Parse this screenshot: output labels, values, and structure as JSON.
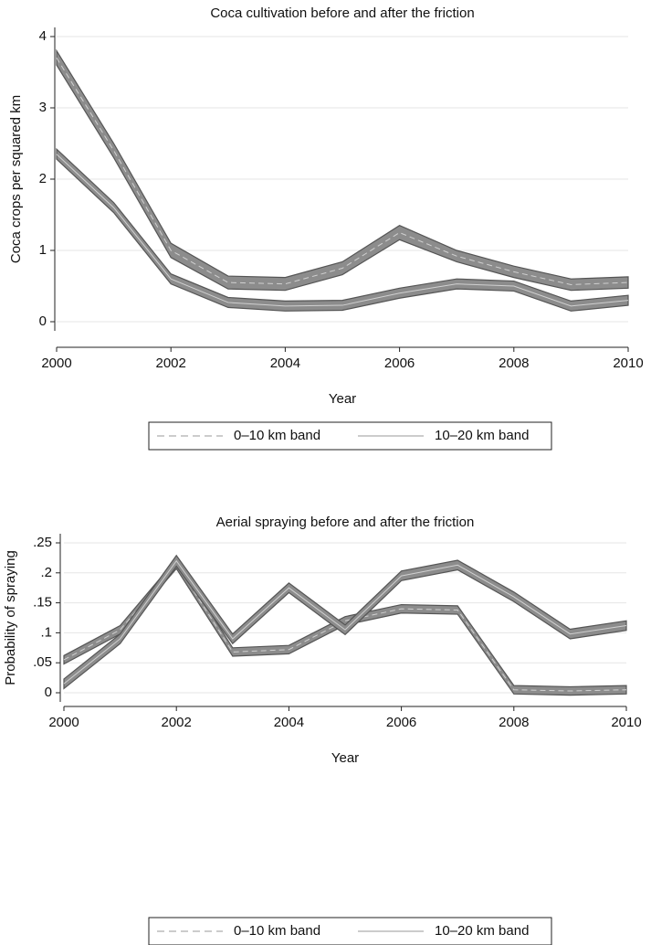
{
  "chart_data": [
    {
      "type": "line",
      "title": "Coca cultivation before and after the friction",
      "xlabel": "Year",
      "ylabel": "Coca crops per squared km",
      "x": [
        2000,
        2001,
        2002,
        2003,
        2004,
        2005,
        2006,
        2007,
        2008,
        2009,
        2010
      ],
      "xlim": [
        2000,
        2010
      ],
      "xticks": [
        2000,
        2002,
        2004,
        2006,
        2008,
        2010
      ],
      "ylim": [
        0,
        4
      ],
      "yticks": [
        0,
        1,
        2,
        3,
        4
      ],
      "grid": true,
      "legend": "bottom",
      "series": [
        {
          "name": "0–10 km band",
          "color": "#555555",
          "band_color": "#8c8c8c",
          "dashed": true,
          "values": [
            3.7,
            2.4,
            1.0,
            0.55,
            0.53,
            0.75,
            1.25,
            0.92,
            0.7,
            0.52,
            0.55
          ],
          "lower": [
            3.6,
            2.3,
            0.9,
            0.46,
            0.44,
            0.66,
            1.15,
            0.84,
            0.62,
            0.44,
            0.47
          ],
          "upper": [
            3.8,
            2.5,
            1.1,
            0.64,
            0.62,
            0.84,
            1.35,
            1.0,
            0.78,
            0.6,
            0.63
          ]
        },
        {
          "name": "10–20 km band",
          "color": "#555555",
          "band_color": "#8c8c8c",
          "dashed": false,
          "values": [
            2.35,
            1.6,
            0.6,
            0.27,
            0.22,
            0.23,
            0.4,
            0.53,
            0.5,
            0.22,
            0.3
          ],
          "lower": [
            2.28,
            1.53,
            0.53,
            0.2,
            0.15,
            0.16,
            0.33,
            0.46,
            0.43,
            0.15,
            0.23
          ],
          "upper": [
            2.42,
            1.67,
            0.67,
            0.34,
            0.29,
            0.3,
            0.47,
            0.6,
            0.57,
            0.29,
            0.37
          ]
        }
      ]
    },
    {
      "type": "line",
      "title": "Aerial spraying before and after the friction",
      "xlabel": "Year",
      "ylabel": "Probability of spraying",
      "x": [
        2000,
        2001,
        2002,
        2003,
        2004,
        2005,
        2006,
        2007,
        2008,
        2009,
        2010
      ],
      "xlim": [
        2000,
        2010
      ],
      "xticks": [
        2000,
        2002,
        2004,
        2006,
        2008,
        2010
      ],
      "ylim": [
        0,
        0.25
      ],
      "yticks": [
        0,
        {
          "value": 0.05,
          "label": ".05"
        },
        {
          "value": 0.1,
          "label": ".1"
        },
        {
          "value": 0.15,
          "label": ".15"
        },
        {
          "value": 0.2,
          "label": ".2"
        },
        {
          "value": 0.25,
          "label": ".25"
        }
      ],
      "grid": true,
      "legend": "bottom",
      "series": [
        {
          "name": "0–10 km band",
          "color": "#555555",
          "band_color": "#8c8c8c",
          "dashed": true,
          "values": [
            0.055,
            0.105,
            0.215,
            0.068,
            0.072,
            0.12,
            0.14,
            0.138,
            0.005,
            0.003,
            0.005
          ],
          "lower": [
            0.048,
            0.098,
            0.207,
            0.061,
            0.065,
            0.113,
            0.133,
            0.131,
            -0.002,
            -0.004,
            -0.002
          ],
          "upper": [
            0.062,
            0.112,
            0.223,
            0.075,
            0.079,
            0.127,
            0.147,
            0.145,
            0.012,
            0.01,
            0.012
          ]
        },
        {
          "name": "10–20 km band",
          "color": "#555555",
          "band_color": "#8c8c8c",
          "dashed": false,
          "values": [
            0.015,
            0.09,
            0.22,
            0.09,
            0.175,
            0.105,
            0.195,
            0.213,
            0.16,
            0.098,
            0.112
          ],
          "lower": [
            0.007,
            0.082,
            0.211,
            0.082,
            0.167,
            0.097,
            0.187,
            0.205,
            0.152,
            0.09,
            0.104
          ],
          "upper": [
            0.023,
            0.098,
            0.229,
            0.098,
            0.183,
            0.113,
            0.203,
            0.221,
            0.168,
            0.106,
            0.12
          ]
        }
      ]
    }
  ]
}
